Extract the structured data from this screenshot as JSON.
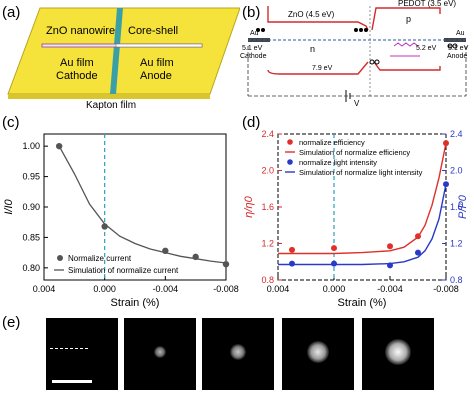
{
  "panels": {
    "a": {
      "label": "(a)",
      "left_top": "ZnO nanowire",
      "right_top": "Core-shell",
      "left_film": "Au film",
      "left_role": "Cathode",
      "right_film": "Au film",
      "right_role": "Anode",
      "substrate": "Kapton film",
      "colors": {
        "substrate": "#f5e23a",
        "gap": "#3aa0a8",
        "wire": "#9b3b9b"
      }
    },
    "b": {
      "label": "(b)",
      "zno_label": "ZnO (4.5 eV)",
      "pedot_label": "PEDOT (3.5 eV)",
      "p_label": "p",
      "n_label": "n",
      "au_left": "Au",
      "au_left_ev": "5.1 eV",
      "au_left_role": "Cathode",
      "au_right": "Au",
      "au_right_ev": "5.1 eV",
      "au_right_role": "Anode",
      "gap_zno": "7.9 eV",
      "gap_pedot": "5.2 eV",
      "v_label": "V",
      "colors": {
        "band": "#d42a2a",
        "fermi": "#2a5aa8",
        "photon": "#c030c0"
      }
    },
    "c": {
      "label": "(c)",
      "chart_data": {
        "type": "scatter",
        "xlabel": "Strain (%)",
        "ylabel": "I/I0",
        "xlim": [
          0.004,
          -0.008
        ],
        "ylim": [
          0.78,
          1.02
        ],
        "x_ticks": [
          "0.004",
          "0.000",
          "-0.004",
          "-0.008"
        ],
        "y_ticks": [
          "0.80",
          "0.85",
          "0.90",
          "0.95",
          "1.00"
        ],
        "series": [
          {
            "name": "Normalize current",
            "kind": "points",
            "color": "#555555",
            "x": [
              0.003,
              0.0,
              -0.004,
              -0.006,
              -0.008
            ],
            "y": [
              1.0,
              0.868,
              0.828,
              0.818,
              0.806
            ]
          },
          {
            "name": "Simulation of normalize current",
            "kind": "line",
            "color": "#555555",
            "x": [
              0.003,
              0.002,
              0.001,
              0.0,
              -0.001,
              -0.002,
              -0.003,
              -0.004,
              -0.005,
              -0.006,
              -0.007,
              -0.008
            ],
            "y": [
              1.0,
              0.955,
              0.905,
              0.872,
              0.852,
              0.84,
              0.831,
              0.825,
              0.819,
              0.815,
              0.811,
              0.808
            ]
          }
        ],
        "dashed_x": 0.0,
        "colors": {
          "dashed": "#2a9fc0"
        }
      }
    },
    "d": {
      "label": "(d)",
      "chart_data": {
        "type": "scatter",
        "xlabel": "Strain (%)",
        "ylabel_left": "η/η0",
        "ylabel_right": "P/P0",
        "xlim": [
          0.004,
          -0.008
        ],
        "ylim_left": [
          0.8,
          2.4
        ],
        "ylim_right": [
          0.8,
          2.4
        ],
        "x_ticks": [
          "0.004",
          "0.000",
          "-0.004",
          "-0.008"
        ],
        "y_ticks_left": [
          "0.8",
          "1.2",
          "1.6",
          "2.0",
          "2.4"
        ],
        "y_ticks_right": [
          "0.8",
          "1.2",
          "1.6",
          "2.0",
          "2.4"
        ],
        "series": [
          {
            "name": "normalize efficiency",
            "kind": "points",
            "color": "#e0302a",
            "x": [
              0.003,
              0.0,
              -0.004,
              -0.006,
              -0.008
            ],
            "y": [
              1.13,
              1.15,
              1.17,
              1.28,
              2.3
            ]
          },
          {
            "name": "Simulation of normalize efficiency",
            "kind": "line",
            "color": "#e0302a",
            "x": [
              0.004,
              0.002,
              0.0,
              -0.002,
              -0.004,
              -0.005,
              -0.006,
              -0.0065,
              -0.007,
              -0.0075,
              -0.008
            ],
            "y": [
              1.09,
              1.09,
              1.09,
              1.1,
              1.12,
              1.16,
              1.27,
              1.4,
              1.62,
              1.92,
              2.3
            ]
          },
          {
            "name": "normalize light intensity",
            "kind": "points",
            "color": "#2a3ac8",
            "x": [
              0.003,
              0.0,
              -0.004,
              -0.006,
              -0.008
            ],
            "y": [
              0.98,
              0.98,
              0.96,
              1.1,
              1.85
            ]
          },
          {
            "name": "Simulation of normalize light intensity",
            "kind": "line",
            "color": "#2a3ac8",
            "x": [
              0.004,
              0.002,
              0.0,
              -0.002,
              -0.004,
              -0.005,
              -0.006,
              -0.0065,
              -0.007,
              -0.0075,
              -0.008
            ],
            "y": [
              0.97,
              0.97,
              0.97,
              0.97,
              0.98,
              1.0,
              1.05,
              1.12,
              1.25,
              1.47,
              1.85
            ]
          }
        ],
        "dashed_x": 0.0,
        "colors": {
          "dashed": "#2a9fc0",
          "left_axis": "#d42a2a",
          "right_axis": "#2a3ac8"
        }
      }
    },
    "e": {
      "label": "(e)",
      "frames": [
        {
          "spot": 0
        },
        {
          "spot": 0.25
        },
        {
          "spot": 0.45
        },
        {
          "spot": 0.75
        },
        {
          "spot": 0.95
        }
      ]
    }
  }
}
